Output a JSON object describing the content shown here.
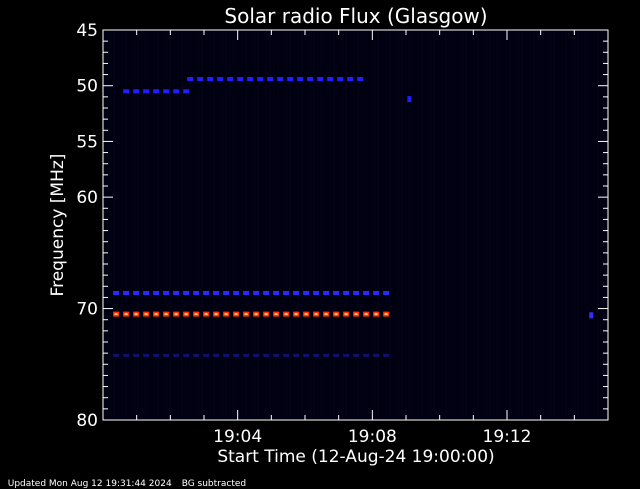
{
  "chart_data": {
    "type": "heatmap",
    "title": "Solar radio Flux (Glasgow)",
    "xlabel": "Start Time (12-Aug-24 19:00:00)",
    "ylabel": "Frequency [MHz]",
    "x_unit": "minutes after 19:00:00",
    "xlim": [
      0,
      15
    ],
    "ylim": [
      80,
      45
    ],
    "x_ticks": [
      {
        "value": 4,
        "label": "19:04"
      },
      {
        "value": 8,
        "label": "19:08"
      },
      {
        "value": 12,
        "label": "19:12"
      }
    ],
    "y_ticks": [
      {
        "value": 45,
        "label": "45"
      },
      {
        "value": 50,
        "label": "50"
      },
      {
        "value": 55,
        "label": "55"
      },
      {
        "value": 60,
        "label": "60"
      },
      {
        "value": 70,
        "label": "70"
      },
      {
        "value": 80,
        "label": "80"
      }
    ],
    "emission_bands": [
      {
        "freq_mhz": 50.5,
        "t_start": 0.6,
        "t_end": 2.6,
        "intensity": "medium",
        "color": "#2020ff"
      },
      {
        "freq_mhz": 49.4,
        "t_start": 2.5,
        "t_end": 7.8,
        "intensity": "medium",
        "color": "#2020ff"
      },
      {
        "freq_mhz": 68.6,
        "t_start": 0.3,
        "t_end": 8.5,
        "intensity": "medium",
        "color": "#2a2aff"
      },
      {
        "freq_mhz": 70.5,
        "t_start": 0.3,
        "t_end": 8.5,
        "intensity": "high",
        "color": "#ff3000"
      },
      {
        "freq_mhz": 74.2,
        "t_start": 0.3,
        "t_end": 8.5,
        "intensity": "low",
        "color": "#101070"
      }
    ],
    "isolated_points": [
      {
        "t": 9.1,
        "freq_mhz": 51.2,
        "color": "#2020ff"
      },
      {
        "t": 14.5,
        "freq_mhz": 70.6,
        "color": "#3030ff"
      }
    ],
    "background_color": "#000010",
    "axis_color": "#ffffff"
  },
  "footer": {
    "updated": "Updated Mon Aug 12 19:31:44 2024",
    "note": "BG subtracted"
  }
}
